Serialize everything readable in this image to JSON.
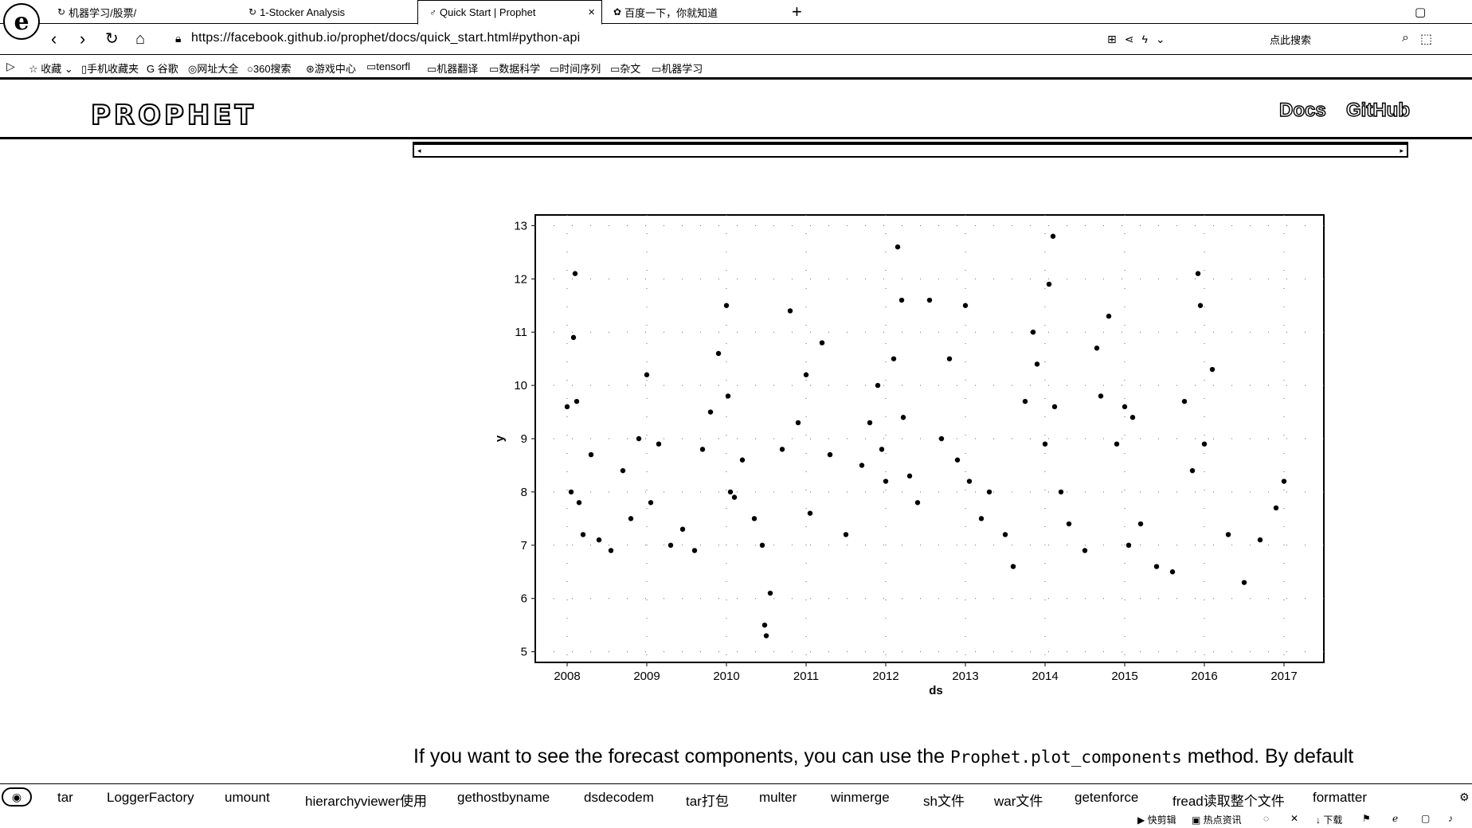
{
  "browser": {
    "tabs": [
      {
        "label": "机器学习/股票/",
        "icon": "loading-icon"
      },
      {
        "label": "1-Stocker Analysis",
        "icon": "loading-icon"
      },
      {
        "label": "Quick Start | Prophet",
        "icon": "prophet-icon",
        "active": true
      },
      {
        "label": "百度一下，你就知道",
        "icon": "baidu-paw-icon"
      }
    ],
    "url": "https://facebook.github.io/prophet/docs/quick_start.html#python-api",
    "search_placeholder": "点此搜索",
    "bookmarks": [
      "收藏",
      "手机收藏夹",
      "谷歌",
      "网址大全",
      "360搜索",
      "游戏中心",
      "tensorfl",
      "机器翻译",
      "数据科学",
      "时间序列",
      "杂文",
      "机器学习"
    ]
  },
  "site": {
    "logo": "PROPHET",
    "nav": {
      "docs": "Docs",
      "github": "GitHub"
    }
  },
  "paragraph": {
    "before": "If you want to see the forecast components, you can use the ",
    "code": "Prophet.plot_components",
    "after": " method. By default"
  },
  "quickbar": [
    "tar",
    "LoggerFactory",
    "umount",
    "hierarchyviewer使用",
    "gethostbyname",
    "dsdecodem",
    "tar打包",
    "multer",
    "winmerge",
    "sh文件",
    "war文件",
    "getenforce",
    "fread读取整个文件",
    "formatter"
  ],
  "statusbar": [
    "快剪辑",
    "热点资讯",
    "下载"
  ],
  "chart_data": {
    "type": "scatter",
    "xlabel": "ds",
    "ylabel": "y",
    "xlim": [
      2007.6,
      2017.5
    ],
    "ylim": [
      4.8,
      13.2
    ],
    "x_ticks": [
      "2008",
      "2009",
      "2010",
      "2011",
      "2012",
      "2013",
      "2014",
      "2015",
      "2016",
      "2017"
    ],
    "y_ticks": [
      "5",
      "6",
      "7",
      "8",
      "9",
      "10",
      "11",
      "12",
      "13"
    ],
    "grid": "dotted",
    "series": [
      {
        "kind": "points",
        "x": [
          2008.0,
          2008.05,
          2008.08,
          2008.1,
          2008.12,
          2008.15,
          2008.2,
          2008.3,
          2008.4,
          2008.55,
          2008.7,
          2008.8,
          2008.9,
          2009.0,
          2009.05,
          2009.15,
          2009.3,
          2009.45,
          2009.6,
          2009.7,
          2009.8,
          2009.9,
          2010.0,
          2010.02,
          2010.05,
          2010.1,
          2010.2,
          2010.35,
          2010.45,
          2010.48,
          2010.5,
          2010.55,
          2010.7,
          2010.8,
          2010.9,
          2011.0,
          2011.05,
          2011.2,
          2011.3,
          2011.5,
          2011.7,
          2011.8,
          2011.9,
          2011.95,
          2012.0,
          2012.1,
          2012.15,
          2012.2,
          2012.22,
          2012.3,
          2012.4,
          2012.55,
          2012.7,
          2012.8,
          2012.9,
          2013.0,
          2013.05,
          2013.2,
          2013.3,
          2013.5,
          2013.6,
          2013.75,
          2013.85,
          2013.9,
          2014.0,
          2014.05,
          2014.1,
          2014.12,
          2014.2,
          2014.3,
          2014.5,
          2014.65,
          2014.7,
          2014.8,
          2014.9,
          2015.0,
          2015.05,
          2015.1,
          2015.2,
          2015.4,
          2015.6,
          2015.75,
          2015.85,
          2015.92,
          2015.95,
          2016.0,
          2016.1,
          2016.3,
          2016.5,
          2016.7,
          2016.9,
          2017.0
        ],
        "y": [
          9.6,
          8.0,
          10.9,
          12.1,
          9.7,
          7.8,
          7.2,
          8.7,
          7.1,
          6.9,
          8.4,
          7.5,
          9.0,
          10.2,
          7.8,
          8.9,
          7.0,
          7.3,
          6.9,
          8.8,
          9.5,
          10.6,
          11.5,
          9.8,
          8.0,
          7.9,
          8.6,
          7.5,
          7.0,
          5.5,
          5.3,
          6.1,
          8.8,
          11.4,
          9.3,
          10.2,
          7.6,
          10.8,
          8.7,
          7.2,
          8.5,
          9.3,
          10.0,
          8.8,
          8.2,
          10.5,
          12.6,
          11.6,
          9.4,
          8.3,
          7.8,
          11.6,
          9.0,
          10.5,
          8.6,
          11.5,
          8.2,
          7.5,
          8.0,
          7.2,
          6.6,
          9.7,
          11.0,
          10.4,
          8.9,
          11.9,
          12.8,
          9.6,
          8.0,
          7.4,
          6.9,
          10.7,
          9.8,
          11.3,
          8.9,
          9.6,
          7.0,
          9.4,
          7.4,
          6.6,
          6.5,
          9.7,
          8.4,
          12.1,
          11.5,
          8.9,
          10.3,
          7.2,
          6.3,
          7.1,
          7.7,
          8.2
        ]
      }
    ]
  }
}
